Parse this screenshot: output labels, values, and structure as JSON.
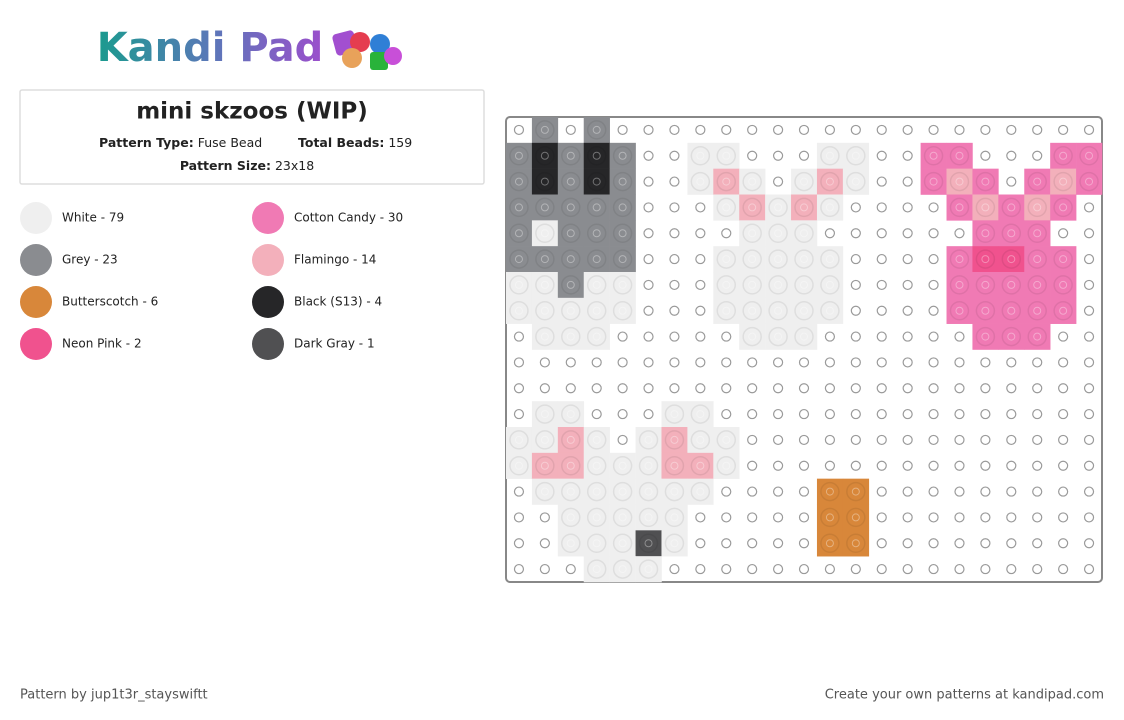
{
  "header": {
    "logo": "Kandi Pad"
  },
  "info": {
    "title": "mini skzoos (WIP)",
    "pattern_type_label": "Pattern Type:",
    "pattern_type": "Fuse Bead",
    "total_beads_label": "Total Beads:",
    "total_beads": 159,
    "pattern_size_label": "Pattern Size:",
    "pattern_size": "23x18"
  },
  "legend": {
    "items": [
      {
        "label": "White - 79",
        "color": "#efefef"
      },
      {
        "label": "Cotton Candy - 30",
        "color": "#f07ab4"
      },
      {
        "label": "Grey - 23",
        "color": "#8a8c90"
      },
      {
        "label": "Flamingo - 14",
        "color": "#f3b0bb"
      },
      {
        "label": "Butterscotch - 6",
        "color": "#d8873a"
      },
      {
        "label": "Black (S13) - 4",
        "color": "#262628"
      },
      {
        "label": "Neon Pink - 2",
        "color": "#f0528e"
      },
      {
        "label": "Dark Gray - 1",
        "color": "#505052"
      }
    ]
  },
  "board": {
    "grid": [
      [
        null,
        2,
        null,
        2,
        null,
        null,
        null,
        null,
        null,
        null,
        null,
        null,
        null,
        null,
        null,
        null,
        null,
        null,
        null,
        null,
        null,
        null,
        null
      ],
      [
        2,
        5,
        2,
        5,
        2,
        null,
        null,
        0,
        0,
        null,
        null,
        null,
        0,
        0,
        null,
        null,
        1,
        1,
        null,
        null,
        null,
        1,
        1
      ],
      [
        2,
        5,
        2,
        5,
        2,
        null,
        null,
        0,
        3,
        0,
        null,
        0,
        3,
        0,
        null,
        null,
        1,
        3,
        1,
        null,
        1,
        3,
        1
      ],
      [
        2,
        2,
        2,
        2,
        2,
        null,
        null,
        null,
        0,
        3,
        0,
        3,
        0,
        null,
        null,
        null,
        null,
        1,
        3,
        1,
        3,
        1,
        null
      ],
      [
        2,
        0,
        2,
        2,
        2,
        null,
        null,
        null,
        null,
        0,
        0,
        0,
        null,
        null,
        null,
        null,
        null,
        null,
        1,
        1,
        1,
        null,
        null
      ],
      [
        2,
        2,
        2,
        2,
        2,
        null,
        null,
        null,
        0,
        0,
        0,
        0,
        0,
        null,
        null,
        null,
        null,
        1,
        6,
        6,
        1,
        1,
        null
      ],
      [
        0,
        0,
        2,
        0,
        0,
        null,
        null,
        null,
        0,
        0,
        0,
        0,
        0,
        null,
        null,
        null,
        null,
        1,
        1,
        1,
        1,
        1,
        null
      ],
      [
        0,
        0,
        0,
        0,
        0,
        null,
        null,
        null,
        0,
        0,
        0,
        0,
        0,
        null,
        null,
        null,
        null,
        1,
        1,
        1,
        1,
        1,
        null
      ],
      [
        null,
        0,
        0,
        0,
        null,
        null,
        null,
        null,
        null,
        0,
        0,
        0,
        null,
        null,
        null,
        null,
        null,
        null,
        1,
        1,
        1,
        null,
        null
      ],
      [
        null,
        null,
        null,
        null,
        null,
        null,
        null,
        null,
        null,
        null,
        null,
        null,
        null,
        null,
        null,
        null,
        null,
        null,
        null,
        null,
        null,
        null,
        null
      ],
      [
        null,
        null,
        null,
        null,
        null,
        null,
        null,
        null,
        null,
        null,
        null,
        null,
        null,
        null,
        null,
        null,
        null,
        null,
        null,
        null,
        null,
        null,
        null
      ],
      [
        null,
        0,
        0,
        null,
        null,
        null,
        0,
        0,
        null,
        null,
        null,
        null,
        null,
        null,
        null,
        null,
        null,
        null,
        null,
        null,
        null,
        null,
        null
      ],
      [
        0,
        0,
        3,
        0,
        null,
        0,
        3,
        0,
        0,
        null,
        null,
        null,
        null,
        null,
        null,
        null,
        null,
        null,
        null,
        null,
        null,
        null,
        null
      ],
      [
        0,
        3,
        3,
        0,
        0,
        0,
        3,
        3,
        0,
        null,
        null,
        null,
        null,
        null,
        null,
        null,
        null,
        null,
        null,
        null,
        null,
        null,
        null
      ],
      [
        null,
        0,
        0,
        0,
        0,
        0,
        0,
        0,
        null,
        null,
        null,
        null,
        4,
        4,
        null,
        null,
        null,
        null,
        null,
        null,
        null,
        null,
        null
      ],
      [
        null,
        null,
        0,
        0,
        0,
        0,
        0,
        null,
        null,
        null,
        null,
        null,
        4,
        4,
        null,
        null,
        null,
        null,
        null,
        null,
        null,
        null,
        null
      ],
      [
        null,
        null,
        0,
        0,
        0,
        7,
        0,
        null,
        null,
        null,
        null,
        null,
        4,
        4,
        null,
        null,
        null,
        null,
        null,
        null,
        null,
        null,
        null
      ],
      [
        null,
        null,
        null,
        0,
        0,
        0,
        null,
        null,
        null,
        null,
        null,
        null,
        null,
        null,
        null,
        null,
        null,
        null,
        null,
        null,
        null,
        null,
        null
      ]
    ]
  },
  "footer": {
    "credit": "Pattern by jup1t3r_stayswiftt",
    "promo": "Create your own patterns at kandipad.com"
  }
}
